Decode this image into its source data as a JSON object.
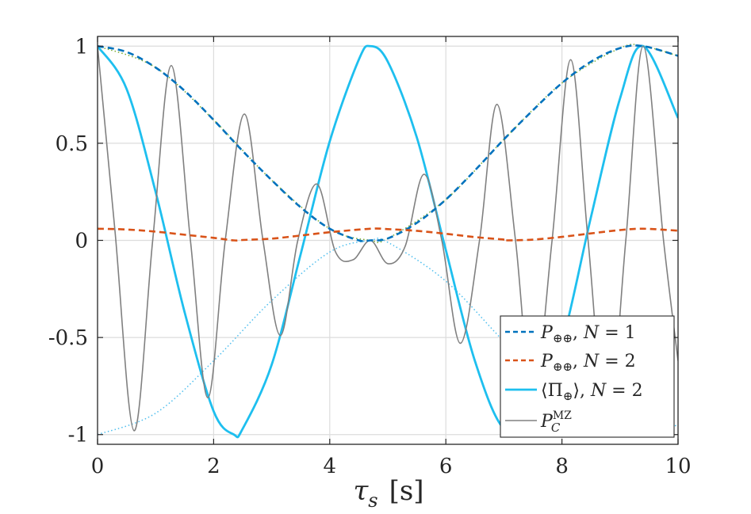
{
  "chart_data": {
    "type": "line",
    "title": "",
    "xlabel": {
      "symbol": "τ",
      "subscript": "s",
      "unit": "[s]"
    },
    "ylabel": "",
    "xlim": [
      0,
      10
    ],
    "ylim": [
      -1.05,
      1.05
    ],
    "grid": true,
    "legend_position": "bottom-right",
    "x_ticks": [
      "0",
      "2",
      "4",
      "6",
      "8",
      "10"
    ],
    "y_ticks": [
      "-1",
      "-0.5",
      "0",
      "0.5",
      "1"
    ],
    "x_tick_values": [
      0,
      2,
      4,
      6,
      8,
      10
    ],
    "y_tick_values": [
      -1,
      -0.5,
      0,
      0.5,
      1
    ],
    "series": [
      {
        "name": "P⊕⊕, N = 1",
        "color": "#0072bd",
        "style": "dashed",
        "x": [
          0,
          0.5,
          1,
          1.5,
          2,
          2.5,
          3,
          3.5,
          4,
          4.5,
          4.7,
          5,
          5.5,
          6,
          6.5,
          7,
          7.5,
          8,
          8.5,
          9,
          9.4,
          10
        ],
        "y": [
          1,
          0.97,
          0.89,
          0.77,
          0.62,
          0.46,
          0.31,
          0.17,
          0.06,
          0.0,
          0.0,
          0.01,
          0.09,
          0.21,
          0.36,
          0.52,
          0.67,
          0.81,
          0.92,
          0.99,
          1.0,
          0.95
        ]
      },
      {
        "name": "P⊕⊕, N = 2",
        "color": "#d95319",
        "style": "dashed",
        "x": [
          0,
          0.5,
          1,
          1.5,
          2,
          2.35,
          2.5,
          3,
          3.5,
          4,
          4.7,
          5,
          5.5,
          6,
          6.5,
          7,
          7.05,
          7.5,
          8,
          8.5,
          9,
          9.4,
          10
        ],
        "y": [
          0.06,
          0.056,
          0.045,
          0.029,
          0.013,
          0.0,
          0.002,
          0.009,
          0.025,
          0.042,
          0.06,
          0.058,
          0.049,
          0.034,
          0.017,
          0.004,
          0.0,
          0.004,
          0.018,
          0.036,
          0.053,
          0.06,
          0.05
        ]
      },
      {
        "name": "⟨Π⊕⟩, N = 2",
        "color": "#1ebfef",
        "style": "solid",
        "x": [
          0,
          0.5,
          1,
          1.5,
          2,
          2.35,
          2.5,
          3,
          3.5,
          4,
          4.5,
          4.7,
          5,
          5.5,
          6,
          6.5,
          7,
          7.5,
          8,
          8.5,
          9,
          9.4,
          10
        ],
        "y": [
          1,
          0.78,
          0.25,
          -0.37,
          -0.88,
          -1.0,
          -0.97,
          -0.64,
          -0.07,
          0.51,
          0.93,
          1.0,
          0.92,
          0.53,
          -0.05,
          -0.62,
          -0.97,
          -0.93,
          -0.53,
          0.12,
          0.73,
          1.0,
          0.63
        ]
      },
      {
        "name": "P_C^MZ",
        "color": "#808080",
        "style": "solid-thin",
        "x": [
          0,
          0.3,
          0.63,
          0.95,
          1.27,
          1.6,
          1.9,
          2.2,
          2.53,
          2.85,
          3.15,
          3.45,
          3.78,
          4.1,
          4.4,
          4.7,
          5.0,
          5.3,
          5.62,
          5.93,
          6.25,
          6.58,
          6.88,
          7.2,
          7.5,
          7.83,
          8.15,
          8.45,
          8.78,
          9.1,
          9.4,
          9.75,
          10
        ],
        "y": [
          1,
          0.05,
          -0.98,
          0.0,
          0.9,
          0.0,
          -0.81,
          0.0,
          0.65,
          0.0,
          -0.49,
          0.0,
          0.29,
          -0.06,
          -0.1,
          0.0,
          -0.12,
          -0.03,
          0.34,
          0.0,
          -0.53,
          0.0,
          0.7,
          0.0,
          -0.83,
          0.0,
          0.93,
          0.0,
          -0.98,
          0.0,
          1.0,
          0.0,
          -0.62
        ]
      },
      {
        "name": "",
        "color": "#77ac30",
        "style": "dotted",
        "x": [
          0,
          1,
          2,
          3,
          4,
          4.7,
          5,
          6,
          7,
          8,
          9,
          9.4,
          10
        ],
        "y": [
          1,
          0.89,
          0.62,
          0.31,
          0.06,
          0.0,
          0.01,
          0.21,
          0.52,
          0.81,
          0.99,
          1.0,
          0.95
        ]
      },
      {
        "name": "",
        "color": "#4dbeee",
        "style": "dotted",
        "x": [
          0,
          1,
          2,
          3,
          4,
          4.7,
          5,
          6,
          7,
          8,
          9,
          9.4,
          10
        ],
        "y": [
          -1,
          -0.89,
          -0.62,
          -0.31,
          -0.06,
          0.0,
          -0.01,
          -0.21,
          -0.52,
          -0.81,
          -0.99,
          -1.0,
          -0.95
        ]
      }
    ]
  }
}
